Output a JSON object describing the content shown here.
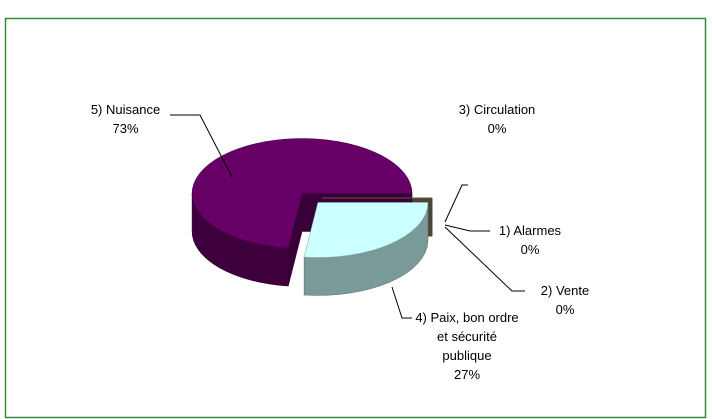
{
  "chart_data": {
    "type": "pie3d",
    "categories": [
      "1) Alarmes",
      "2) Vente",
      "3) Circulation",
      "4) Paix, bon ordre et sécurité publique",
      "5) Nuisance"
    ],
    "values": [
      0,
      0,
      0,
      27,
      73
    ],
    "value_labels": [
      "0%",
      "0%",
      "0%",
      "27%",
      "73%"
    ],
    "colors": [
      "#9c9c6e",
      "#7f7f7f",
      "#8a7d5c",
      "#ccffff",
      "#660066"
    ]
  }
}
